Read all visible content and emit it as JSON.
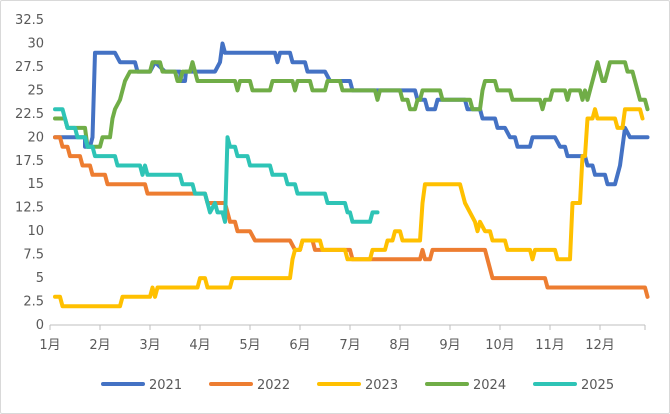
{
  "chart_data": {
    "type": "line",
    "title": "",
    "xlabel": "",
    "ylabel": "",
    "categories": [
      "1月",
      "2月",
      "3月",
      "4月",
      "5月",
      "6月",
      "7月",
      "8月",
      "9月",
      "10月",
      "11月",
      "12月"
    ],
    "x_range": [
      1,
      12.9
    ],
    "ylim": [
      0,
      32.5
    ],
    "yticks": [
      "0",
      "2.5",
      "5",
      "7.5",
      "10",
      "12.5",
      "15",
      "17.5",
      "20",
      "22.5",
      "25",
      "27.5",
      "30",
      "32.5"
    ],
    "grid": false,
    "legend_position": "bottom",
    "series": [
      {
        "name": "2021",
        "color": "#4472c4",
        "points": [
          [
            1.1,
            20
          ],
          [
            1.7,
            20
          ],
          [
            1.7,
            19
          ],
          [
            1.8,
            19
          ],
          [
            1.85,
            20
          ],
          [
            1.9,
            29
          ],
          [
            2.3,
            29
          ],
          [
            2.4,
            28
          ],
          [
            2.7,
            28
          ],
          [
            2.75,
            27
          ],
          [
            2.9,
            27
          ],
          [
            3.0,
            27
          ],
          [
            3.1,
            28
          ],
          [
            3.3,
            27
          ],
          [
            3.6,
            27
          ],
          [
            3.62,
            26
          ],
          [
            3.7,
            26
          ],
          [
            3.72,
            27
          ],
          [
            4.3,
            27
          ],
          [
            4.4,
            28
          ],
          [
            4.45,
            30
          ],
          [
            4.5,
            29
          ],
          [
            5.5,
            29
          ],
          [
            5.55,
            28
          ],
          [
            5.6,
            29
          ],
          [
            5.8,
            29
          ],
          [
            5.85,
            28
          ],
          [
            6.1,
            28
          ],
          [
            6.15,
            27
          ],
          [
            6.5,
            27
          ],
          [
            6.6,
            26
          ],
          [
            7.0,
            26
          ],
          [
            7.05,
            25
          ],
          [
            8.3,
            25
          ],
          [
            8.35,
            24
          ],
          [
            8.5,
            24
          ],
          [
            8.55,
            23
          ],
          [
            8.7,
            23
          ],
          [
            8.75,
            24
          ],
          [
            9.3,
            24
          ],
          [
            9.35,
            23
          ],
          [
            9.6,
            23
          ],
          [
            9.65,
            22
          ],
          [
            9.9,
            22
          ],
          [
            9.95,
            21
          ],
          [
            10.1,
            21
          ],
          [
            10.2,
            20
          ],
          [
            10.3,
            20
          ],
          [
            10.35,
            19
          ],
          [
            10.6,
            19
          ],
          [
            10.65,
            20
          ],
          [
            11.1,
            20
          ],
          [
            11.2,
            19
          ],
          [
            11.3,
            19
          ],
          [
            11.35,
            18
          ],
          [
            11.7,
            18
          ],
          [
            11.75,
            17
          ],
          [
            11.85,
            17
          ],
          [
            11.9,
            16
          ],
          [
            12.1,
            16
          ],
          [
            12.15,
            15
          ],
          [
            12.3,
            15
          ],
          [
            12.4,
            17
          ],
          [
            12.5,
            21
          ],
          [
            12.6,
            20
          ],
          [
            12.95,
            20
          ]
        ]
      },
      {
        "name": "2022",
        "color": "#ed7d31",
        "points": [
          [
            1.1,
            20
          ],
          [
            1.2,
            20
          ],
          [
            1.25,
            19
          ],
          [
            1.35,
            19
          ],
          [
            1.4,
            18
          ],
          [
            1.6,
            18
          ],
          [
            1.65,
            17
          ],
          [
            1.8,
            17
          ],
          [
            1.85,
            16
          ],
          [
            2.1,
            16
          ],
          [
            2.15,
            15
          ],
          [
            2.9,
            15
          ],
          [
            2.95,
            14
          ],
          [
            4.1,
            14
          ],
          [
            4.15,
            13
          ],
          [
            4.5,
            13
          ],
          [
            4.55,
            12
          ],
          [
            4.6,
            11
          ],
          [
            4.7,
            11
          ],
          [
            4.75,
            10
          ],
          [
            5.0,
            10
          ],
          [
            5.1,
            9
          ],
          [
            5.8,
            9
          ],
          [
            5.9,
            8
          ],
          [
            6.0,
            8
          ],
          [
            6.05,
            9
          ],
          [
            6.25,
            9
          ],
          [
            6.3,
            8
          ],
          [
            7.0,
            8
          ],
          [
            7.05,
            7
          ],
          [
            8.4,
            7
          ],
          [
            8.45,
            8
          ],
          [
            8.5,
            7
          ],
          [
            8.6,
            7
          ],
          [
            8.65,
            8
          ],
          [
            9.7,
            8
          ],
          [
            9.75,
            7
          ],
          [
            9.8,
            6
          ],
          [
            9.85,
            5
          ],
          [
            10.9,
            5
          ],
          [
            10.95,
            4
          ],
          [
            12.9,
            4
          ],
          [
            12.95,
            3
          ]
        ]
      },
      {
        "name": "2023",
        "color": "#ffc000",
        "points": [
          [
            1.1,
            3
          ],
          [
            1.2,
            3
          ],
          [
            1.25,
            2
          ],
          [
            2.4,
            2
          ],
          [
            2.45,
            3
          ],
          [
            3.0,
            3
          ],
          [
            3.05,
            4
          ],
          [
            3.1,
            3
          ],
          [
            3.15,
            4
          ],
          [
            3.95,
            4
          ],
          [
            4.0,
            5
          ],
          [
            4.1,
            5
          ],
          [
            4.15,
            4
          ],
          [
            4.6,
            4
          ],
          [
            4.65,
            5
          ],
          [
            5.8,
            5
          ],
          [
            5.85,
            7
          ],
          [
            5.9,
            8
          ],
          [
            6.0,
            8
          ],
          [
            6.05,
            9
          ],
          [
            6.4,
            9
          ],
          [
            6.45,
            8
          ],
          [
            6.9,
            8
          ],
          [
            6.95,
            7
          ],
          [
            7.4,
            7
          ],
          [
            7.45,
            8
          ],
          [
            7.7,
            8
          ],
          [
            7.75,
            9
          ],
          [
            7.85,
            9
          ],
          [
            7.9,
            10
          ],
          [
            8.0,
            10
          ],
          [
            8.05,
            9
          ],
          [
            8.4,
            9
          ],
          [
            8.45,
            13
          ],
          [
            8.5,
            15
          ],
          [
            9.2,
            15
          ],
          [
            9.25,
            14
          ],
          [
            9.3,
            13
          ],
          [
            9.4,
            12
          ],
          [
            9.5,
            11
          ],
          [
            9.55,
            10
          ],
          [
            9.6,
            11
          ],
          [
            9.7,
            10
          ],
          [
            9.8,
            10
          ],
          [
            9.85,
            9
          ],
          [
            10.1,
            9
          ],
          [
            10.15,
            8
          ],
          [
            10.6,
            8
          ],
          [
            10.65,
            7
          ],
          [
            10.7,
            8
          ],
          [
            11.1,
            8
          ],
          [
            11.15,
            7
          ],
          [
            11.4,
            7
          ],
          [
            11.45,
            13
          ],
          [
            11.6,
            13
          ],
          [
            11.65,
            18
          ],
          [
            11.7,
            18
          ],
          [
            11.75,
            22
          ],
          [
            11.85,
            22
          ],
          [
            11.9,
            23
          ],
          [
            11.95,
            22
          ],
          [
            12.3,
            22
          ],
          [
            12.35,
            21
          ],
          [
            12.45,
            21
          ],
          [
            12.5,
            23
          ],
          [
            12.8,
            23
          ],
          [
            12.85,
            22
          ]
        ]
      },
      {
        "name": "2024",
        "color": "#70ad47",
        "points": [
          [
            1.1,
            22
          ],
          [
            1.3,
            22
          ],
          [
            1.35,
            21
          ],
          [
            1.7,
            21
          ],
          [
            1.75,
            19
          ],
          [
            2.0,
            19
          ],
          [
            2.05,
            20
          ],
          [
            2.2,
            20
          ],
          [
            2.25,
            22
          ],
          [
            2.3,
            23
          ],
          [
            2.4,
            24
          ],
          [
            2.45,
            25
          ],
          [
            2.5,
            26
          ],
          [
            2.6,
            27
          ],
          [
            3.0,
            27
          ],
          [
            3.05,
            28
          ],
          [
            3.2,
            28
          ],
          [
            3.25,
            27
          ],
          [
            3.5,
            27
          ],
          [
            3.55,
            26
          ],
          [
            3.6,
            26
          ],
          [
            3.65,
            27
          ],
          [
            3.8,
            27
          ],
          [
            3.85,
            28
          ],
          [
            3.9,
            27
          ],
          [
            3.95,
            26
          ],
          [
            4.7,
            26
          ],
          [
            4.75,
            25
          ],
          [
            4.8,
            26
          ],
          [
            5.0,
            26
          ],
          [
            5.05,
            25
          ],
          [
            5.4,
            25
          ],
          [
            5.45,
            26
          ],
          [
            5.85,
            26
          ],
          [
            5.9,
            25
          ],
          [
            5.95,
            26
          ],
          [
            6.2,
            26
          ],
          [
            6.25,
            25
          ],
          [
            6.5,
            25
          ],
          [
            6.55,
            26
          ],
          [
            6.8,
            26
          ],
          [
            6.85,
            25
          ],
          [
            7.5,
            25
          ],
          [
            7.55,
            24
          ],
          [
            7.6,
            25
          ],
          [
            8.0,
            25
          ],
          [
            8.05,
            24
          ],
          [
            8.15,
            24
          ],
          [
            8.2,
            23
          ],
          [
            8.3,
            23
          ],
          [
            8.35,
            24
          ],
          [
            8.4,
            24
          ],
          [
            8.45,
            25
          ],
          [
            8.8,
            25
          ],
          [
            8.85,
            24
          ],
          [
            9.4,
            24
          ],
          [
            9.45,
            23
          ],
          [
            9.6,
            23
          ],
          [
            9.65,
            25
          ],
          [
            9.7,
            26
          ],
          [
            9.9,
            26
          ],
          [
            9.95,
            25
          ],
          [
            10.2,
            25
          ],
          [
            10.25,
            24
          ],
          [
            10.8,
            24
          ],
          [
            10.85,
            23
          ],
          [
            10.9,
            24
          ],
          [
            11.0,
            24
          ],
          [
            11.05,
            25
          ],
          [
            11.3,
            25
          ],
          [
            11.35,
            24
          ],
          [
            11.4,
            25
          ],
          [
            11.6,
            25
          ],
          [
            11.65,
            24
          ],
          [
            11.7,
            25
          ],
          [
            11.75,
            24
          ],
          [
            11.8,
            25
          ],
          [
            11.85,
            26
          ],
          [
            11.9,
            27
          ],
          [
            11.95,
            28
          ],
          [
            12.0,
            27
          ],
          [
            12.05,
            26
          ],
          [
            12.1,
            26
          ],
          [
            12.15,
            27
          ],
          [
            12.2,
            28
          ],
          [
            12.5,
            28
          ],
          [
            12.55,
            27
          ],
          [
            12.65,
            27
          ],
          [
            12.7,
            26
          ],
          [
            12.75,
            25
          ],
          [
            12.8,
            24
          ],
          [
            12.9,
            24
          ],
          [
            12.95,
            23
          ]
        ]
      },
      {
        "name": "2025",
        "color": "#2ec4b6",
        "points": [
          [
            1.1,
            23
          ],
          [
            1.25,
            23
          ],
          [
            1.3,
            22
          ],
          [
            1.35,
            21
          ],
          [
            1.5,
            21
          ],
          [
            1.55,
            20
          ],
          [
            1.7,
            20
          ],
          [
            1.75,
            19
          ],
          [
            1.85,
            19
          ],
          [
            1.9,
            18
          ],
          [
            2.3,
            18
          ],
          [
            2.35,
            17
          ],
          [
            2.8,
            17
          ],
          [
            2.85,
            16
          ],
          [
            2.9,
            17
          ],
          [
            2.95,
            16
          ],
          [
            3.6,
            16
          ],
          [
            3.65,
            15
          ],
          [
            3.85,
            15
          ],
          [
            3.9,
            14
          ],
          [
            4.1,
            14
          ],
          [
            4.15,
            13
          ],
          [
            4.2,
            12
          ],
          [
            4.3,
            13
          ],
          [
            4.35,
            12
          ],
          [
            4.45,
            12
          ],
          [
            4.5,
            11
          ],
          [
            4.55,
            20
          ],
          [
            4.6,
            19
          ],
          [
            4.7,
            19
          ],
          [
            4.75,
            18
          ],
          [
            4.95,
            18
          ],
          [
            5.0,
            17
          ],
          [
            5.4,
            17
          ],
          [
            5.45,
            16
          ],
          [
            5.7,
            16
          ],
          [
            5.75,
            15
          ],
          [
            5.9,
            15
          ],
          [
            5.95,
            14
          ],
          [
            6.5,
            14
          ],
          [
            6.55,
            13
          ],
          [
            6.9,
            13
          ],
          [
            6.95,
            12
          ],
          [
            7.0,
            12
          ],
          [
            7.05,
            11
          ],
          [
            7.4,
            11
          ],
          [
            7.45,
            12
          ],
          [
            7.55,
            12
          ]
        ]
      }
    ]
  }
}
